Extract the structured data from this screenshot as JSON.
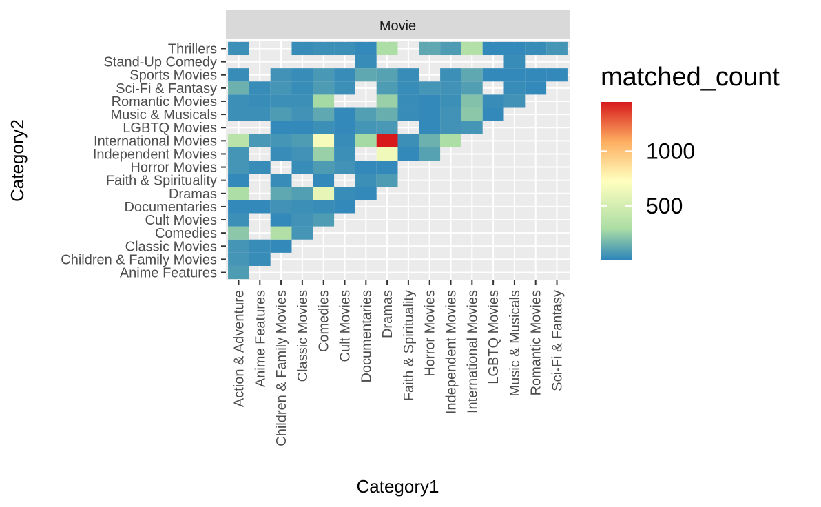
{
  "chart_data": {
    "type": "heatmap",
    "facet_label": "Movie",
    "xlabel": "Category1",
    "ylabel": "Category2",
    "x_categories": [
      "Action & Adventure",
      "Anime Features",
      "Children & Family Movies",
      "Classic Movies",
      "Comedies",
      "Cult Movies",
      "Documentaries",
      "Dramas",
      "Faith & Spirituality",
      "Horror Movies",
      "Independent Movies",
      "International Movies",
      "LGBTQ Movies",
      "Music & Musicals",
      "Romantic Movies",
      "Sci-Fi & Fantasy"
    ],
    "y_categories": [
      "Anime Features",
      "Children & Family Movies",
      "Classic Movies",
      "Comedies",
      "Cult Movies",
      "Documentaries",
      "Dramas",
      "Faith & Spirituality",
      "Horror Movies",
      "Independent Movies",
      "International Movies",
      "LGBTQ Movies",
      "Music & Musicals",
      "Romantic Movies",
      "Sci-Fi & Fantasy",
      "Sports Movies",
      "Stand-Up Comedy",
      "Thrillers"
    ],
    "legend": {
      "title": "matched_count",
      "breaks": [
        500,
        1000
      ],
      "break_labels": [
        "500",
        "1000"
      ],
      "limits": [
        1,
        1450
      ],
      "colors": [
        "#2B83BA",
        "#ABDDA4",
        "#FFFFBF",
        "#FDAE61",
        "#D7191C"
      ],
      "gradient_stops": [
        0,
        0.2,
        0.5,
        0.75,
        1
      ],
      "placement": "right"
    },
    "cells": [
      [
        "Action & Adventure",
        "Anime Features",
        80
      ],
      [
        "Action & Adventure",
        "Children & Family Movies",
        60
      ],
      [
        "Anime Features",
        "Children & Family Movies",
        30
      ],
      [
        "Action & Adventure",
        "Classic Movies",
        60
      ],
      [
        "Anime Features",
        "Classic Movies",
        30
      ],
      [
        "Children & Family Movies",
        "Classic Movies",
        20
      ],
      [
        "Action & Adventure",
        "Comedies",
        220
      ],
      [
        "Children & Family Movies",
        "Comedies",
        320
      ],
      [
        "Classic Movies",
        "Comedies",
        60
      ],
      [
        "Action & Adventure",
        "Cult Movies",
        40
      ],
      [
        "Children & Family Movies",
        "Cult Movies",
        20
      ],
      [
        "Classic Movies",
        "Cult Movies",
        50
      ],
      [
        "Comedies",
        "Cult Movies",
        80
      ],
      [
        "Action & Adventure",
        "Documentaries",
        20
      ],
      [
        "Anime Features",
        "Documentaries",
        20
      ],
      [
        "Children & Family Movies",
        "Documentaries",
        50
      ],
      [
        "Classic Movies",
        "Documentaries",
        40
      ],
      [
        "Comedies",
        "Documentaries",
        30
      ],
      [
        "Cult Movies",
        "Documentaries",
        20
      ],
      [
        "Action & Adventure",
        "Dramas",
        300
      ],
      [
        "Children & Family Movies",
        "Dramas",
        120
      ],
      [
        "Classic Movies",
        "Dramas",
        90
      ],
      [
        "Comedies",
        "Dramas",
        600
      ],
      [
        "Cult Movies",
        "Dramas",
        30
      ],
      [
        "Documentaries",
        "Dramas",
        20
      ],
      [
        "Action & Adventure",
        "Faith & Spirituality",
        20
      ],
      [
        "Children & Family Movies",
        "Faith & Spirituality",
        30
      ],
      [
        "Comedies",
        "Faith & Spirituality",
        20
      ],
      [
        "Documentaries",
        "Faith & Spirituality",
        40
      ],
      [
        "Dramas",
        "Faith & Spirituality",
        80
      ],
      [
        "Action & Adventure",
        "Horror Movies",
        60
      ],
      [
        "Anime Features",
        "Horror Movies",
        30
      ],
      [
        "Classic Movies",
        "Horror Movies",
        30
      ],
      [
        "Comedies",
        "Horror Movies",
        80
      ],
      [
        "Cult Movies",
        "Horror Movies",
        50
      ],
      [
        "Documentaries",
        "Horror Movies",
        20
      ],
      [
        "Dramas",
        "Horror Movies",
        20
      ],
      [
        "Action & Adventure",
        "Independent Movies",
        60
      ],
      [
        "Children & Family Movies",
        "Independent Movies",
        30
      ],
      [
        "Classic Movies",
        "Independent Movies",
        50
      ],
      [
        "Comedies",
        "Independent Movies",
        250
      ],
      [
        "Cult Movies",
        "Independent Movies",
        40
      ],
      [
        "Dramas",
        "Independent Movies",
        650
      ],
      [
        "Faith & Spirituality",
        "Independent Movies",
        20
      ],
      [
        "Horror Movies",
        "Independent Movies",
        100
      ],
      [
        "Action & Adventure",
        "International Movies",
        370
      ],
      [
        "Anime Features",
        "International Movies",
        70
      ],
      [
        "Children & Family Movies",
        "International Movies",
        60
      ],
      [
        "Classic Movies",
        "International Movies",
        80
      ],
      [
        "Comedies",
        "International Movies",
        680
      ],
      [
        "Cult Movies",
        "International Movies",
        30
      ],
      [
        "Documentaries",
        "International Movies",
        280
      ],
      [
        "Dramas",
        "International Movies",
        1450
      ],
      [
        "Faith & Spirituality",
        "International Movies",
        40
      ],
      [
        "Horror Movies",
        "International Movies",
        150
      ],
      [
        "Independent Movies",
        "International Movies",
        300
      ],
      [
        "Children & Family Movies",
        "LGBTQ Movies",
        20
      ],
      [
        "Classic Movies",
        "LGBTQ Movies",
        20
      ],
      [
        "Comedies",
        "LGBTQ Movies",
        40
      ],
      [
        "Cult Movies",
        "LGBTQ Movies",
        20
      ],
      [
        "Documentaries",
        "LGBTQ Movies",
        60
      ],
      [
        "Dramas",
        "LGBTQ Movies",
        70
      ],
      [
        "Horror Movies",
        "LGBTQ Movies",
        20
      ],
      [
        "Independent Movies",
        "LGBTQ Movies",
        50
      ],
      [
        "International Movies",
        "LGBTQ Movies",
        60
      ],
      [
        "Action & Adventure",
        "Music & Musicals",
        40
      ],
      [
        "Anime Features",
        "Music & Musicals",
        40
      ],
      [
        "Children & Family Movies",
        "Music & Musicals",
        80
      ],
      [
        "Classic Movies",
        "Music & Musicals",
        50
      ],
      [
        "Comedies",
        "Music & Musicals",
        120
      ],
      [
        "Cult Movies",
        "Music & Musicals",
        20
      ],
      [
        "Documentaries",
        "Music & Musicals",
        90
      ],
      [
        "Dramas",
        "Music & Musicals",
        140
      ],
      [
        "Faith & Spirituality",
        "Music & Musicals",
        30
      ],
      [
        "Horror Movies",
        "Music & Musicals",
        20
      ],
      [
        "Independent Movies",
        "Music & Musicals",
        50
      ],
      [
        "International Movies",
        "Music & Musicals",
        220
      ],
      [
        "LGBTQ Movies",
        "Music & Musicals",
        20
      ],
      [
        "Action & Adventure",
        "Romantic Movies",
        40
      ],
      [
        "Anime Features",
        "Romantic Movies",
        30
      ],
      [
        "Children & Family Movies",
        "Romantic Movies",
        40
      ],
      [
        "Classic Movies",
        "Romantic Movies",
        40
      ],
      [
        "Comedies",
        "Romantic Movies",
        280
      ],
      [
        "Dramas",
        "Romantic Movies",
        250
      ],
      [
        "Faith & Spirituality",
        "Romantic Movies",
        30
      ],
      [
        "Horror Movies",
        "Romantic Movies",
        20
      ],
      [
        "Independent Movies",
        "Romantic Movies",
        40
      ],
      [
        "International Movies",
        "Romantic Movies",
        200
      ],
      [
        "LGBTQ Movies",
        "Romantic Movies",
        30
      ],
      [
        "Music & Musicals",
        "Romantic Movies",
        50
      ],
      [
        "Action & Adventure",
        "Sci-Fi & Fantasy",
        150
      ],
      [
        "Anime Features",
        "Sci-Fi & Fantasy",
        30
      ],
      [
        "Children & Family Movies",
        "Sci-Fi & Fantasy",
        60
      ],
      [
        "Classic Movies",
        "Sci-Fi & Fantasy",
        30
      ],
      [
        "Comedies",
        "Sci-Fi & Fantasy",
        80
      ],
      [
        "Cult Movies",
        "Sci-Fi & Fantasy",
        40
      ],
      [
        "Dramas",
        "Sci-Fi & Fantasy",
        80
      ],
      [
        "Faith & Spirituality",
        "Sci-Fi & Fantasy",
        30
      ],
      [
        "Horror Movies",
        "Sci-Fi & Fantasy",
        60
      ],
      [
        "Independent Movies",
        "Sci-Fi & Fantasy",
        50
      ],
      [
        "International Movies",
        "Sci-Fi & Fantasy",
        90
      ],
      [
        "Music & Musicals",
        "Sci-Fi & Fantasy",
        30
      ],
      [
        "Romantic Movies",
        "Sci-Fi & Fantasy",
        20
      ],
      [
        "Action & Adventure",
        "Sports Movies",
        30
      ],
      [
        "Children & Family Movies",
        "Sports Movies",
        50
      ],
      [
        "Classic Movies",
        "Sports Movies",
        30
      ],
      [
        "Comedies",
        "Sports Movies",
        70
      ],
      [
        "Cult Movies",
        "Sports Movies",
        30
      ],
      [
        "Documentaries",
        "Sports Movies",
        120
      ],
      [
        "Dramas",
        "Sports Movies",
        100
      ],
      [
        "Faith & Spirituality",
        "Sports Movies",
        30
      ],
      [
        "Independent Movies",
        "Sports Movies",
        40
      ],
      [
        "International Movies",
        "Sports Movies",
        120
      ],
      [
        "LGBTQ Movies",
        "Sports Movies",
        20
      ],
      [
        "Music & Musicals",
        "Sports Movies",
        20
      ],
      [
        "Romantic Movies",
        "Sports Movies",
        20
      ],
      [
        "Sci-Fi & Fantasy",
        "Sports Movies",
        20
      ],
      [
        "Documentaries",
        "Stand-Up Comedy",
        30
      ],
      [
        "Music & Musicals",
        "Stand-Up Comedy",
        30
      ],
      [
        "Action & Adventure",
        "Thrillers",
        40
      ],
      [
        "Classic Movies",
        "Thrillers",
        30
      ],
      [
        "Comedies",
        "Thrillers",
        40
      ],
      [
        "Cult Movies",
        "Thrillers",
        40
      ],
      [
        "Documentaries",
        "Thrillers",
        20
      ],
      [
        "Dramas",
        "Thrillers",
        300
      ],
      [
        "Horror Movies",
        "Thrillers",
        120
      ],
      [
        "Independent Movies",
        "Thrillers",
        80
      ],
      [
        "International Movies",
        "Thrillers",
        330
      ],
      [
        "LGBTQ Movies",
        "Thrillers",
        20
      ],
      [
        "Music & Musicals",
        "Thrillers",
        20
      ],
      [
        "Romantic Movies",
        "Thrillers",
        30
      ],
      [
        "Sci-Fi & Fantasy",
        "Thrillers",
        60
      ]
    ]
  }
}
